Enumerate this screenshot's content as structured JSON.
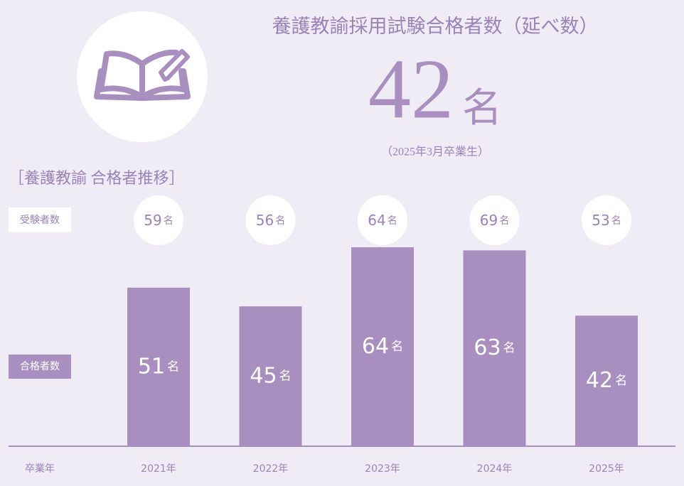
{
  "header": {
    "title": "養護教諭採用試験合格者数（延べ数）",
    "total": 42,
    "note": "（2025年3月卒業生）"
  },
  "chart_data": {
    "type": "bar",
    "title": "［養護教諭 合格者推移］",
    "categories": [
      "2021年",
      "2022年",
      "2023年",
      "2024年",
      "2025年"
    ],
    "x_label": "卒業年",
    "unit": "名",
    "series": [
      {
        "name": "受験者数",
        "color": "#ffffff",
        "values": [
          59,
          56,
          64,
          69,
          53
        ]
      },
      {
        "name": "合格者数",
        "color": "#a98fc0",
        "values": [
          51,
          45,
          64,
          63,
          42
        ]
      }
    ]
  }
}
